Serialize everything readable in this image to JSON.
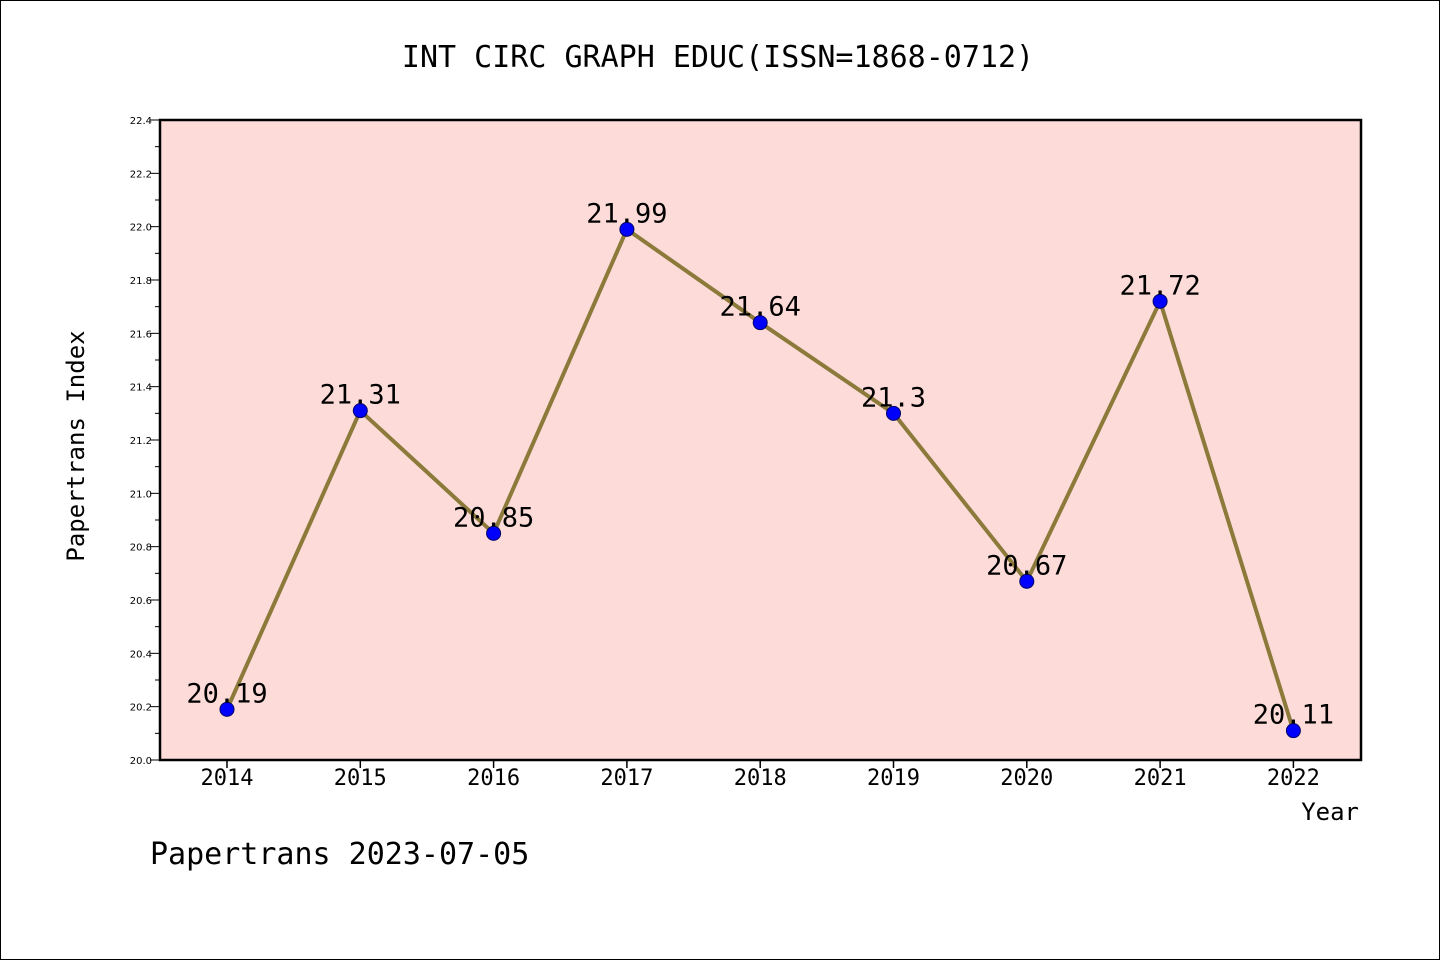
{
  "chart_data": {
    "type": "line",
    "title": "INT CIRC GRAPH EDUC(ISSN=1868-0712)",
    "xlabel": "Year",
    "ylabel": "Papertrans Index",
    "footer": "Papertrans 2023-07-05",
    "categories": [
      "2014",
      "2015",
      "2016",
      "2017",
      "2018",
      "2019",
      "2020",
      "2021",
      "2022"
    ],
    "values": [
      20.19,
      21.31,
      20.85,
      21.99,
      21.64,
      21.3,
      20.67,
      21.72,
      20.11
    ],
    "data_labels": [
      "20.19",
      "21.31",
      "20.85",
      "21.99",
      "21.64",
      "21.3",
      "20.67",
      "21.72",
      "20.11"
    ],
    "ylim": [
      20.0,
      22.4
    ],
    "yticks": [
      "20.0",
      "20.2",
      "20.4",
      "20.6",
      "20.8",
      "21.0",
      "21.2",
      "21.4",
      "21.6",
      "21.8",
      "22.0",
      "22.2",
      "22.4"
    ],
    "grid": false,
    "colors": {
      "plot_background": "#fddbd8",
      "line": "#8b7a3a",
      "marker": "#0000ff"
    }
  }
}
